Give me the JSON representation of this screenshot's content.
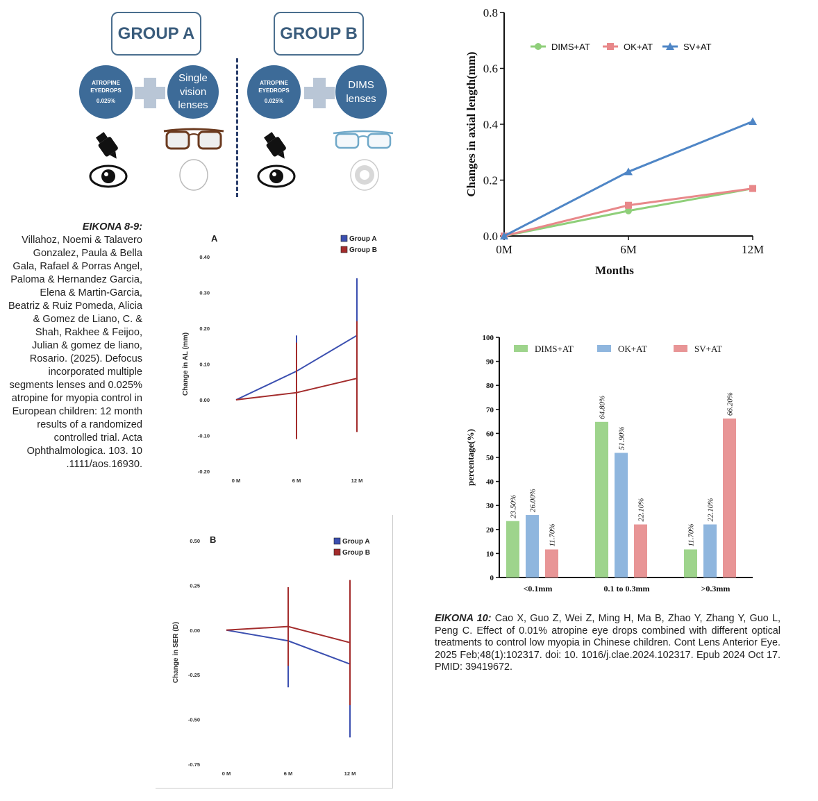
{
  "schematic": {
    "group_a_title": "GROUP A",
    "group_b_title": "GROUP B",
    "atropine_line1": "ATROPINE",
    "atropine_line2": "EYEDROPS",
    "atropine_dose": "0.025%",
    "sv_line1": "Single",
    "sv_line2": "vision",
    "sv_line3": "lenses",
    "dims_line1": "DIMS",
    "dims_line2": "lenses",
    "circle_color": "#3d6b98",
    "plus_color": "#b9c6d6"
  },
  "caption_left": {
    "label": "EIKONA 8-9:",
    "text": "Villahoz, Noemi & Talavero Gonzalez, Paula & Bella Gala, Rafael & Porras Angel, Paloma & Hernandez Garcia, Elena & Martin-Garcia, Beatriz & Ruiz Pomeda, Alicia & Gomez de Liano, C. & Shah, Rakhee & Feijoo, Julian & gomez de liano, Rosario. (2025). Defocus incorporated multiple segments lenses and 0.025% atropine for myopia control in European children: 12 month results of a randomized controlled trial. Acta Ophthalmologica. 103. 10 .1111/aos.16930."
  },
  "caption_right": {
    "label": "EIKONA 10:",
    "text": "Cao X, Guo Z, Wei Z, Ming H, Ma B, Zhao Y, Zhang Y, Guo L, Peng C. Effect of 0.01% atropine eye drops combined with different optical treatments to control low myopia in Chinese children. Cont Lens Anterior Eye. 2025 Feb;48(1):102317. doi: 10. 1016/j.clae.2024.102317. Epub 2024 Oct 17. PMID: 39419672."
  },
  "chart_data": [
    {
      "id": "panel-a",
      "type": "line",
      "panel_label": "A",
      "ylabel": "Change in AL (mm)",
      "xlabel": "",
      "categories": [
        "0 M",
        "6 M",
        "12 M"
      ],
      "ylim": [
        -0.2,
        0.4
      ],
      "yticks": [
        "0.40",
        "0.30",
        "0.20",
        "0.10",
        "0.00",
        "-0.10",
        "-0.20"
      ],
      "ytick_values": [
        0.4,
        0.3,
        0.2,
        0.1,
        0.0,
        -0.1,
        -0.2
      ],
      "legend_position": "top-right",
      "series": [
        {
          "name": "Group A",
          "color": "#3b4fb0",
          "values": [
            0.0,
            0.08,
            0.18
          ],
          "err_low": [
            0.0,
            0.03,
            0.02
          ],
          "err_high": [
            0.0,
            0.18,
            0.34
          ]
        },
        {
          "name": "Group B",
          "color": "#a32c2c",
          "values": [
            0.0,
            0.02,
            0.06
          ],
          "err_low": [
            0.0,
            -0.11,
            -0.09
          ],
          "err_high": [
            0.0,
            0.16,
            0.22
          ]
        }
      ]
    },
    {
      "id": "panel-b",
      "type": "line",
      "panel_label": "B",
      "ylabel": "Change in SER (D)",
      "xlabel": "",
      "categories": [
        "0 M",
        "6 M",
        "12 M"
      ],
      "ylim": [
        -0.75,
        0.5
      ],
      "yticks": [
        "0.50",
        "0.25",
        "0.00",
        "-0.25",
        "-0.50",
        "-0.75"
      ],
      "ytick_values": [
        0.5,
        0.25,
        0.0,
        -0.25,
        -0.5,
        -0.75
      ],
      "legend_position": "top-right",
      "series": [
        {
          "name": "Group A",
          "color": "#3b4fb0",
          "values": [
            0.0,
            -0.06,
            -0.19
          ],
          "err_low": [
            0.0,
            -0.32,
            -0.6
          ],
          "err_high": [
            0.0,
            0.0,
            0.0
          ]
        },
        {
          "name": "Group B",
          "color": "#a32c2c",
          "values": [
            0.0,
            0.02,
            -0.07
          ],
          "err_low": [
            0.0,
            -0.2,
            -0.42
          ],
          "err_high": [
            0.0,
            0.24,
            0.28
          ]
        }
      ]
    },
    {
      "id": "axial-line",
      "type": "line",
      "ylabel": "Changes in axial length(mm)",
      "xlabel": "Months",
      "categories": [
        "0M",
        "6M",
        "12M"
      ],
      "ylim": [
        0.0,
        0.8
      ],
      "yticks": [
        "0.8",
        "0.6",
        "0.4",
        "0.2",
        "0.0"
      ],
      "ytick_values": [
        0.8,
        0.6,
        0.4,
        0.2,
        0.0
      ],
      "legend_position": "top",
      "series": [
        {
          "name": "DIMS+AT",
          "color": "#8fcf7a",
          "marker": "circle",
          "values": [
            0.0,
            0.09,
            0.17
          ]
        },
        {
          "name": "OK+AT",
          "color": "#e8888a",
          "marker": "square",
          "values": [
            0.0,
            0.11,
            0.17
          ]
        },
        {
          "name": "SV+AT",
          "color": "#4f86c6",
          "marker": "triangle",
          "values": [
            0.0,
            0.23,
            0.41
          ]
        }
      ]
    },
    {
      "id": "percentage-bar",
      "type": "bar",
      "ylabel": "percentage(%)",
      "xlabel": "",
      "categories": [
        "<0.1mm",
        "0.1 to 0.3mm",
        ">0.3mm"
      ],
      "ylim": [
        0,
        100
      ],
      "yticks": [
        "100",
        "90",
        "80",
        "70",
        "60",
        "50",
        "40",
        "30",
        "20",
        "10",
        "0"
      ],
      "ytick_values": [
        100,
        90,
        80,
        70,
        60,
        50,
        40,
        30,
        20,
        10,
        0
      ],
      "legend_position": "top",
      "series": [
        {
          "name": "DIMS+AT",
          "color": "#9ed48c",
          "values": [
            23.5,
            64.8,
            11.7
          ],
          "labels": [
            "23.50%",
            "64.80%",
            "11.70%"
          ]
        },
        {
          "name": "OK+AT",
          "color": "#8fb6de",
          "values": [
            26.0,
            51.9,
            22.1
          ],
          "labels": [
            "26.00%",
            "51.90%",
            "22.10%"
          ]
        },
        {
          "name": "SV+AT",
          "color": "#e89596",
          "values": [
            11.7,
            22.1,
            66.2
          ],
          "labels": [
            "11.70%",
            "22.10%",
            "66.20%"
          ]
        }
      ]
    }
  ]
}
